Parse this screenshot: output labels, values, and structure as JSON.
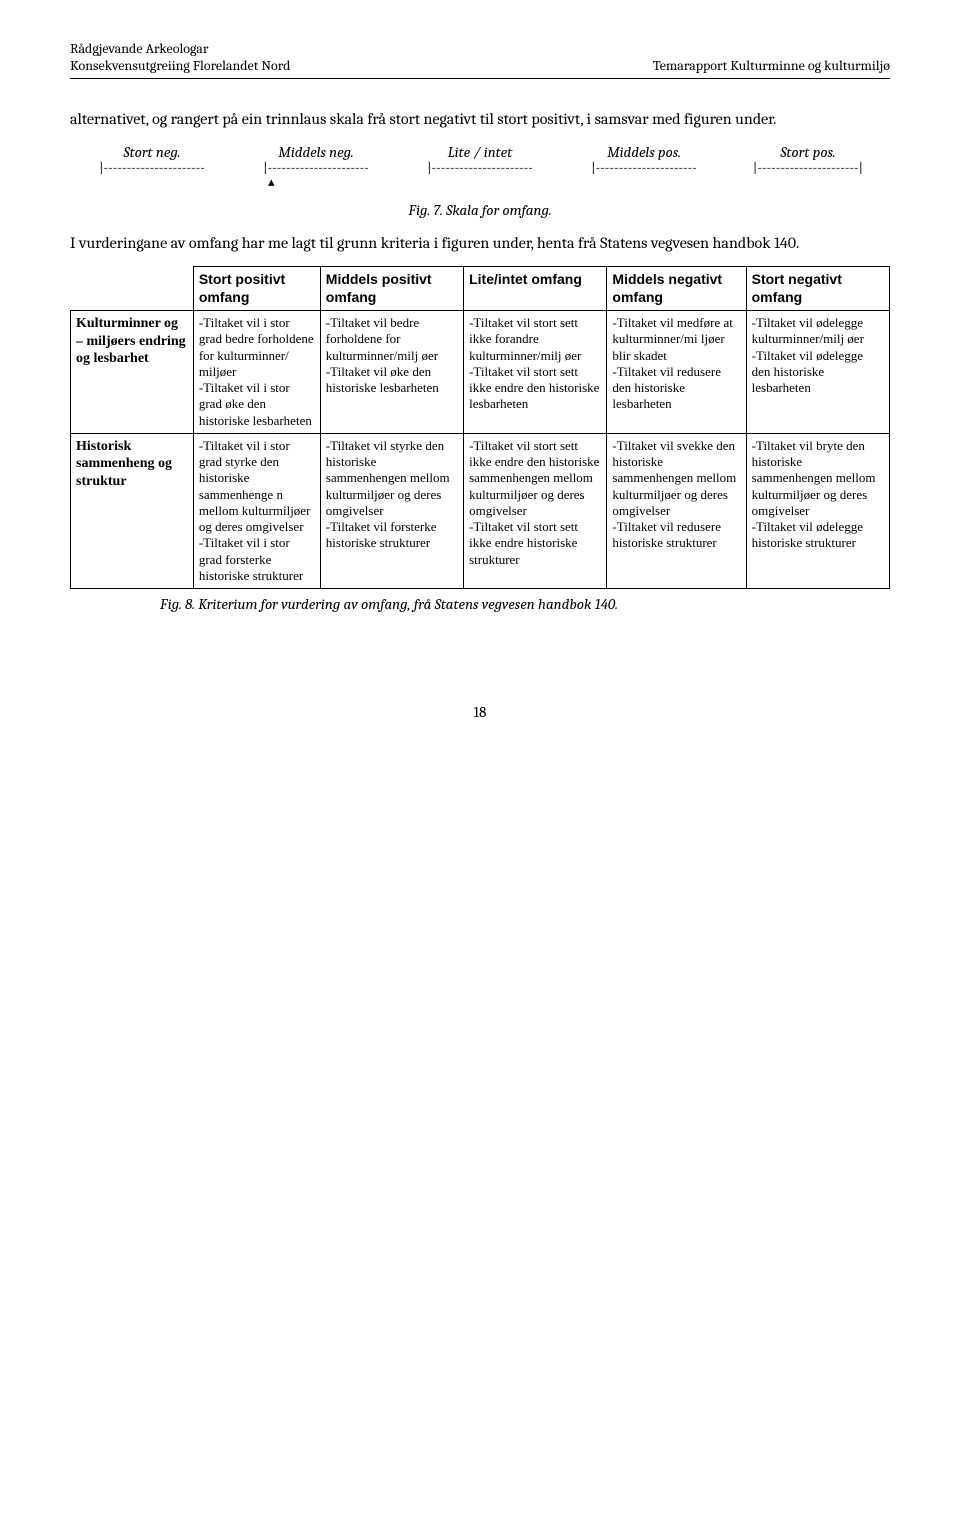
{
  "header": {
    "left_line1": "Rådgjevande Arkeologar",
    "left_line2": "Konsekvensutgreiing  Florelandet Nord",
    "right_line": "Temarapport Kulturminne og kulturmiljø"
  },
  "intro_para": "alternativet, og rangert på ein trinnlaus skala frå stort negativt til stort positivt, i samsvar med figuren under.",
  "scale": {
    "labels": [
      "Stort neg.",
      "Middels neg.",
      "Lite / intet",
      "Middels pos.",
      "Stort pos."
    ],
    "dash_segment": "|----------------------",
    "dash_end": "|----------------------|",
    "pointer": "▴"
  },
  "fig7_caption": "Fig. 7. Skala for omfang.",
  "eval_para": "I vurderingane av omfang har me lagt til grunn kriteria i figuren under, henta frå Statens vegvesen handbok 140.",
  "criteria_table": {
    "columns": [
      "Stort positivt omfang",
      "Middels positivt omfang",
      "Lite/intet omfang",
      "Middels negativt omfang",
      "Stort negativt omfang"
    ],
    "rows": [
      {
        "head": "Kulturminner og – miljøers endring og lesbarhet",
        "cells": [
          "-Tiltaket vil i stor grad bedre forholdene for kulturminner/ miljøer\n-Tiltaket vil i stor grad øke den historiske lesbarheten",
          "-Tiltaket vil bedre forholdene for kulturminner/milj øer\n-Tiltaket vil øke den historiske lesbarheten",
          "-Tiltaket vil stort sett ikke forandre kulturminner/milj øer\n-Tiltaket vil stort sett ikke endre den historiske lesbarheten",
          "-Tiltaket vil medføre at kulturminner/mi ljøer blir skadet\n-Tiltaket vil redusere den historiske lesbarheten",
          "-Tiltaket vil ødelegge kulturminner/milj øer\n-Tiltaket vil ødelegge den historiske lesbarheten"
        ]
      },
      {
        "head": "Historisk sammenheng og struktur",
        "cells": [
          "-Tiltaket vil i stor grad styrke den historiske sammenhenge n mellom kulturmiljøer og deres omgivelser\n-Tiltaket vil i stor grad forsterke historiske strukturer",
          "-Tiltaket vil styrke den historiske sammenhengen mellom kulturmiljøer og deres omgivelser\n-Tiltaket vil forsterke historiske strukturer",
          "-Tiltaket vil stort sett ikke endre den historiske sammenhengen mellom kulturmiljøer og deres omgivelser\n-Tiltaket vil stort sett ikke endre historiske strukturer",
          "-Tiltaket vil svekke den historiske sammenhengen mellom kulturmiljøer og deres omgivelser\n-Tiltaket vil redusere historiske strukturer",
          "-Tiltaket vil bryte den historiske sammenhengen mellom kulturmiljøer og deres omgivelser\n-Tiltaket vil ødelegge historiske strukturer"
        ]
      }
    ]
  },
  "fig8_caption": "Fig. 8. Kriterium for vurdering av omfang, frå Statens vegvesen handbok 140.",
  "page_number": "18"
}
